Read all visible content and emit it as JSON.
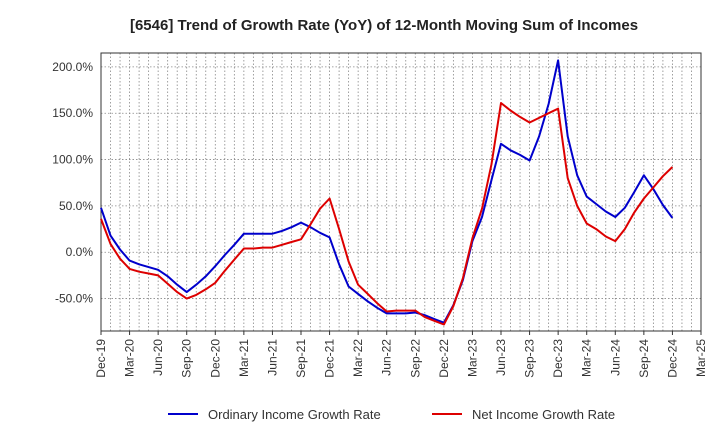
{
  "chart_data": {
    "type": "line",
    "title": "[6546]  Trend of Growth Rate (YoY) of 12-Month Moving Sum of Incomes",
    "xlabel": "",
    "ylabel": "",
    "ylim": [
      -85,
      215
    ],
    "y_ticks": [
      200,
      150,
      100,
      50,
      0,
      -50
    ],
    "y_tick_labels": [
      "200.0%",
      "150.0%",
      "100.0%",
      "50.0%",
      "0.0%",
      "-50.0%"
    ],
    "x_tick_labels": [
      "Dec-19",
      "Mar-20",
      "Jun-20",
      "Sep-20",
      "Dec-20",
      "Mar-21",
      "Jun-21",
      "Sep-21",
      "Dec-21",
      "Mar-22",
      "Jun-22",
      "Sep-22",
      "Dec-22",
      "Mar-23",
      "Jun-23",
      "Sep-23",
      "Dec-23",
      "Mar-24",
      "Jun-24",
      "Sep-24",
      "Dec-24",
      "Mar-25"
    ],
    "grid": true,
    "legend_position": "bottom",
    "x": [
      "Dec-19",
      "Jan-20",
      "Feb-20",
      "Mar-20",
      "Apr-20",
      "May-20",
      "Jun-20",
      "Jul-20",
      "Aug-20",
      "Sep-20",
      "Oct-20",
      "Nov-20",
      "Dec-20",
      "Jan-21",
      "Feb-21",
      "Mar-21",
      "Apr-21",
      "May-21",
      "Jun-21",
      "Jul-21",
      "Aug-21",
      "Sep-21",
      "Oct-21",
      "Nov-21",
      "Dec-21",
      "Jan-22",
      "Feb-22",
      "Mar-22",
      "Apr-22",
      "May-22",
      "Jun-22",
      "Jul-22",
      "Aug-22",
      "Sep-22",
      "Oct-22",
      "Nov-22",
      "Dec-22",
      "Jan-23",
      "Feb-23",
      "Mar-23",
      "Apr-23",
      "May-23",
      "Jun-23",
      "Jul-23",
      "Aug-23",
      "Sep-23",
      "Oct-23",
      "Nov-23",
      "Dec-23",
      "Jan-24",
      "Feb-24",
      "Mar-24",
      "Apr-24",
      "May-24",
      "Jun-24",
      "Jul-24",
      "Aug-24",
      "Sep-24",
      "Oct-24",
      "Nov-24",
      "Dec-24"
    ],
    "series": [
      {
        "name": "Ordinary Income Growth Rate",
        "color": "#0000cc",
        "values": [
          48,
          18,
          3,
          -9,
          -13,
          -16,
          -19,
          -26,
          -35,
          -43,
          -35,
          -26,
          -15,
          -3,
          8,
          20,
          20,
          20,
          20,
          23,
          27,
          32,
          27,
          21,
          16,
          -13,
          -37,
          -45,
          -53,
          -60,
          -66,
          -66,
          -66,
          -65,
          -68,
          -72,
          -76,
          -57,
          -30,
          12,
          38,
          78,
          117,
          110,
          105,
          99,
          125,
          160,
          207,
          125,
          83,
          60,
          52,
          44,
          38,
          48,
          65,
          83,
          68,
          51,
          37
        ]
      },
      {
        "name": "Net Income Growth Rate",
        "color": "#dd0000",
        "values": [
          36,
          9,
          -7,
          -18,
          -21,
          -23,
          -25,
          -34,
          -43,
          -50,
          -46,
          -40,
          -33,
          -20,
          -8,
          4,
          4,
          5,
          5,
          8,
          11,
          14,
          30,
          47,
          58,
          25,
          -10,
          -35,
          -45,
          -55,
          -64,
          -63,
          -63,
          -63,
          -70,
          -74,
          -78,
          -58,
          -28,
          15,
          47,
          95,
          161,
          153,
          146,
          140,
          145,
          150,
          155,
          80,
          50,
          31,
          25,
          17,
          12,
          25,
          43,
          58,
          70,
          82,
          92
        ]
      }
    ]
  }
}
